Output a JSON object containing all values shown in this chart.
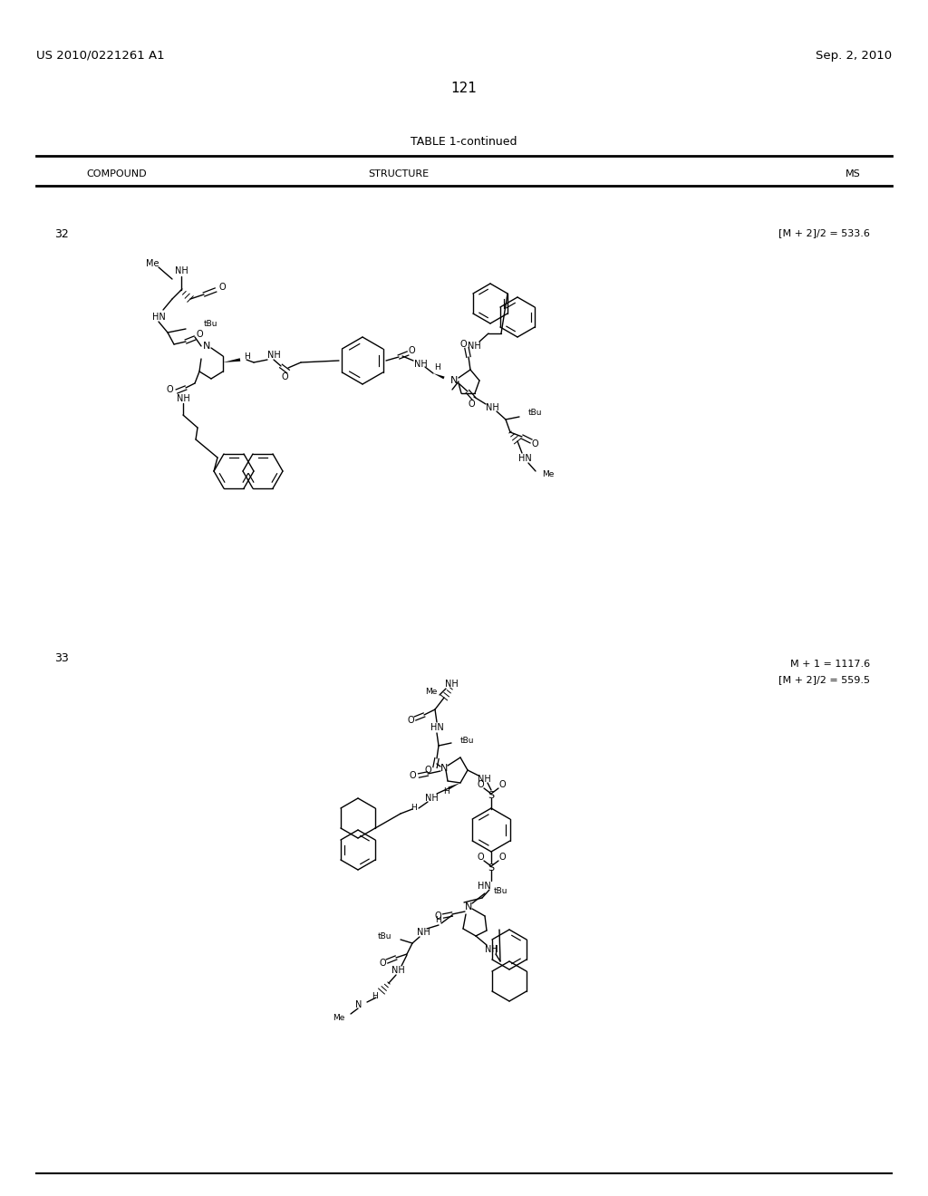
{
  "page_number": "121",
  "patent_number": "US 2010/0221261 A1",
  "patent_date": "Sep. 2, 2010",
  "table_title": "TABLE 1-continued",
  "col_headers": [
    "COMPOUND",
    "STRUCTURE",
    "MS"
  ],
  "compound32_number": "32",
  "compound32_ms": "[M + 2]/2 = 533.6",
  "compound33_number": "33",
  "compound33_ms1": "M + 1 = 1117.6",
  "compound33_ms2": "[M + 2]/2 = 559.5",
  "bg_color": "#ffffff",
  "text_color": "#000000",
  "line_color": "#000000"
}
